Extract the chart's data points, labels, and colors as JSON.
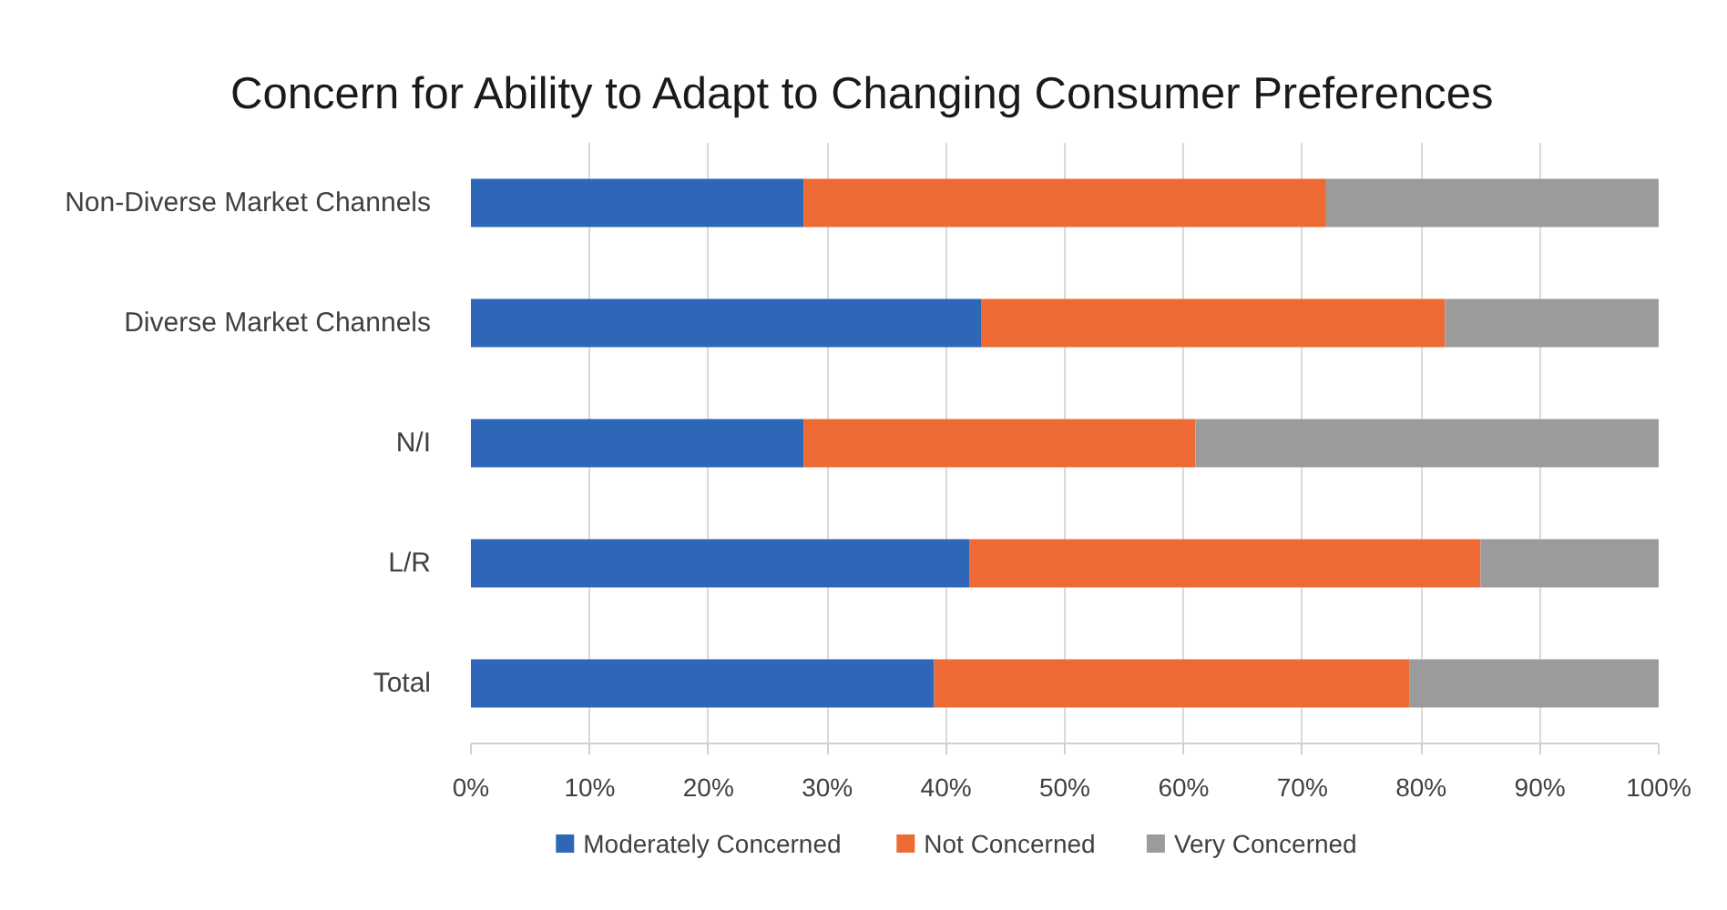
{
  "chart_data": {
    "type": "bar",
    "orientation": "horizontal",
    "stacked": true,
    "title": "Concern for Ability to Adapt to Changing Consumer Preferences",
    "categories": [
      "Non-Diverse Market Channels",
      "Diverse Market Channels",
      "N/I",
      "L/R",
      "Total"
    ],
    "series": [
      {
        "name": "Moderately Concerned",
        "color": "#2e67b8",
        "values": [
          28,
          43,
          28,
          42,
          39
        ]
      },
      {
        "name": "Not Concerned",
        "color": "#ee6a35",
        "values": [
          44,
          39,
          33,
          43,
          40
        ]
      },
      {
        "name": "Very Concerned",
        "color": "#9b9b9b",
        "values": [
          28,
          18,
          39,
          15,
          21
        ]
      }
    ],
    "xlim": [
      0,
      100
    ],
    "xticks": [
      {
        "value": 0,
        "label": "0%"
      },
      {
        "value": 10,
        "label": "10%"
      },
      {
        "value": 20,
        "label": "20%"
      },
      {
        "value": 30,
        "label": "30%"
      },
      {
        "value": 40,
        "label": "40%"
      },
      {
        "value": 50,
        "label": "50%"
      },
      {
        "value": 60,
        "label": "60%"
      },
      {
        "value": 70,
        "label": "70%"
      },
      {
        "value": 80,
        "label": "80%"
      },
      {
        "value": 90,
        "label": "90%"
      },
      {
        "value": 100,
        "label": "100%"
      }
    ],
    "grid": "x",
    "legend": "bottom"
  }
}
